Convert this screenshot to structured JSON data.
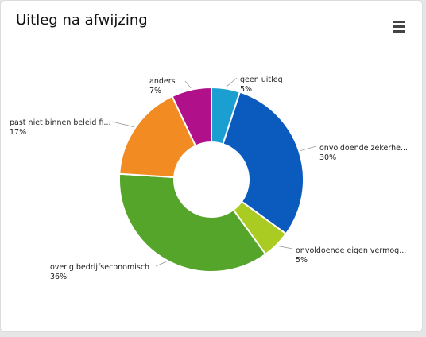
{
  "card": {
    "title": "Uitleg na afwijzing"
  },
  "icons": {
    "menu": "hamburger-menu-icon"
  },
  "chart_data": {
    "type": "pie",
    "donut": true,
    "title": "Uitleg na afwijzing",
    "legend": "none",
    "slices": [
      {
        "label": "geen uitleg",
        "value": 5,
        "display": "5%",
        "color": "#1a9fd0"
      },
      {
        "label": "onvoldoende zekerhe...",
        "value": 30,
        "display": "30%",
        "color": "#0b5bbf"
      },
      {
        "label": "onvoldoende eigen vermog...",
        "value": 5,
        "display": "5%",
        "color": "#aacc22"
      },
      {
        "label": "overig bedrijfseconomisch",
        "value": 36,
        "display": "36%",
        "color": "#55a52a"
      },
      {
        "label": "past niet binnen beleid fi...",
        "value": 17,
        "display": "17%",
        "color": "#f28c22"
      },
      {
        "label": "anders",
        "value": 7,
        "display": "7%",
        "color": "#b0108a"
      }
    ]
  }
}
